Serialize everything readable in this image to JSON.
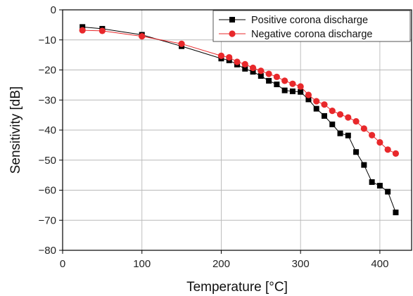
{
  "chart_data": {
    "type": "line",
    "xlabel": "Temperature [°C]",
    "ylabel": "Sensitivity [dB]",
    "xlim": [
      0,
      440
    ],
    "ylim": [
      -80,
      0
    ],
    "xticks": [
      0,
      100,
      200,
      300,
      400
    ],
    "yticks": [
      0,
      -10,
      -20,
      -30,
      -40,
      -50,
      -60,
      -70,
      -80
    ],
    "grid": true,
    "legend_position": "top-right",
    "series": [
      {
        "name": "Positive corona discharge",
        "color": "#000000",
        "marker": "square",
        "x": [
          25,
          50,
          100,
          150,
          200,
          210,
          220,
          230,
          240,
          250,
          260,
          270,
          280,
          290,
          300,
          310,
          320,
          330,
          340,
          350,
          360,
          370,
          380,
          390,
          400,
          410,
          420
        ],
        "y": [
          -5.7,
          -6.3,
          -8.3,
          -12.1,
          -16.2,
          -16.8,
          -18.2,
          -19.6,
          -20.6,
          -22.0,
          -23.6,
          -24.8,
          -26.8,
          -27.1,
          -27.3,
          -29.8,
          -32.9,
          -35.3,
          -38.1,
          -41.1,
          -41.8,
          -47.3,
          -51.6,
          -57.3,
          -58.5,
          -60.5,
          -67.4
        ]
      },
      {
        "name": "Negative corona discharge",
        "color": "#e8282b",
        "marker": "circle",
        "x": [
          25,
          50,
          100,
          150,
          200,
          210,
          220,
          230,
          240,
          250,
          260,
          270,
          280,
          290,
          300,
          310,
          320,
          330,
          340,
          350,
          360,
          370,
          380,
          390,
          400,
          410,
          420
        ],
        "y": [
          -6.8,
          -7.0,
          -8.8,
          -11.3,
          -15.3,
          -15.8,
          -17.3,
          -18.1,
          -19.3,
          -20.3,
          -21.3,
          -22.3,
          -23.6,
          -24.6,
          -25.5,
          -28.3,
          -30.4,
          -31.5,
          -33.6,
          -34.8,
          -35.8,
          -37.1,
          -39.5,
          -41.7,
          -44.1,
          -46.5,
          -47.8
        ]
      }
    ]
  }
}
